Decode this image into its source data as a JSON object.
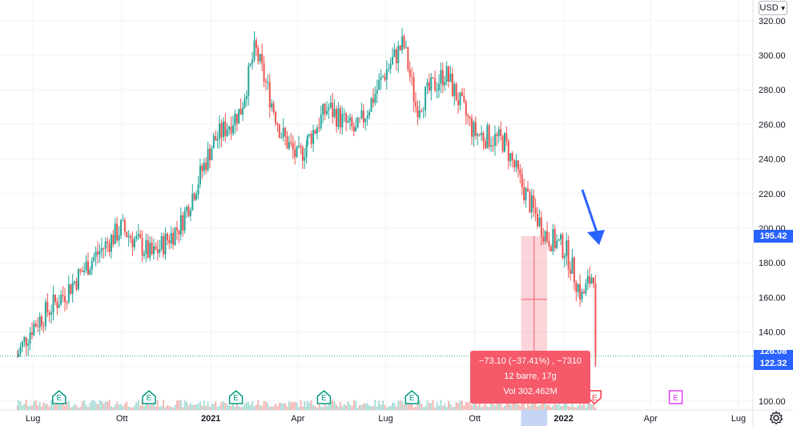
{
  "currency": {
    "label": "USD"
  },
  "price_tags": {
    "crosshair_price": "195.42",
    "last_price": "122.32",
    "prev_close_partial": "126.08"
  },
  "measure_tooltip": {
    "line1": "−73.10 (−37.41%) , −7310",
    "line2": "12 barre, 17g",
    "line3": "Vol 302.462M"
  },
  "earnings_markers": [
    {
      "label": "E",
      "color": "#089981"
    },
    {
      "label": "E",
      "color": "#089981"
    },
    {
      "label": "E",
      "color": "#089981"
    },
    {
      "label": "E",
      "color": "#089981"
    },
    {
      "label": "E",
      "color": "#089981"
    },
    {
      "label": "E",
      "color": "#f23645"
    },
    {
      "label": "E",
      "color": "#e040fb"
    }
  ],
  "icons": {
    "settings": "gear-icon",
    "annotation": "arrow-down-icon"
  },
  "colors": {
    "up": "#26a69a",
    "down": "#ef5350",
    "arrow": "#2962ff",
    "grid": "#f0f3fa"
  },
  "chart_data": {
    "type": "candlestick",
    "x_tick_labels": [
      "Lug",
      "Ott",
      "2021",
      "Apr",
      "Lug",
      "Ott",
      "2022",
      "Apr",
      "Lug"
    ],
    "y_ticks": [
      100,
      120,
      140,
      160,
      180,
      200,
      220,
      240,
      260,
      280,
      300,
      320
    ],
    "ylim": [
      97,
      324
    ],
    "x": [
      "2020-06-15",
      "2020-07-01",
      "2020-08-03",
      "2020-09-01",
      "2020-10-01",
      "2020-11-02",
      "2020-12-01",
      "2021-01-04",
      "2021-02-01",
      "2021-02-16",
      "2021-03-01",
      "2021-03-15",
      "2021-04-01",
      "2021-05-03",
      "2021-06-01",
      "2021-07-01",
      "2021-07-20",
      "2021-08-02",
      "2021-09-01",
      "2021-10-01",
      "2021-11-01",
      "2021-11-18",
      "2021-12-01",
      "2021-12-15",
      "2022-01-03",
      "2022-01-20",
      "2022-02-01",
      "2022-02-03"
    ],
    "y": [
      126,
      143,
      162,
      182,
      200,
      184,
      202,
      250,
      268,
      304,
      280,
      255,
      240,
      270,
      255,
      290,
      307,
      270,
      290,
      255,
      250,
      226,
      210,
      195,
      188,
      160,
      175,
      122
    ],
    "annotations": [
      {
        "type": "measure",
        "from": 195.42,
        "to": 122.32,
        "change": -73.1,
        "percent": -37.41
      },
      {
        "type": "arrow",
        "direction": "down",
        "color": "#2962ff"
      }
    ],
    "horizontal_lines": [
      {
        "value": 126.08,
        "style": "dotted"
      }
    ],
    "grid": true
  }
}
